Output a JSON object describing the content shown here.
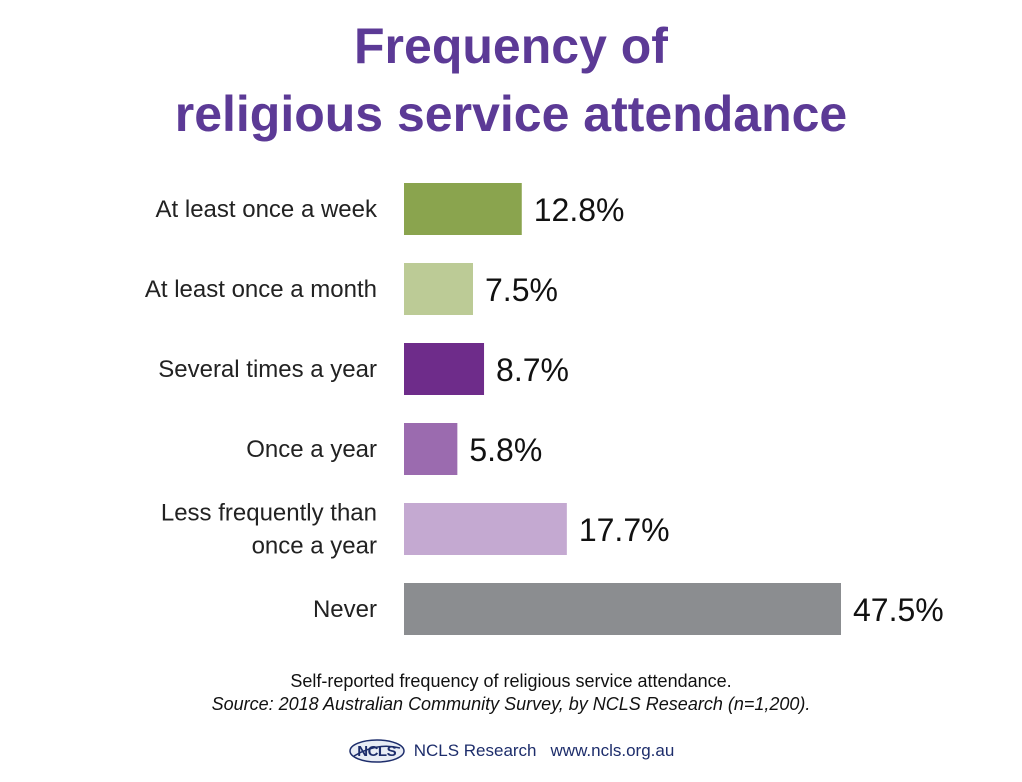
{
  "title_line_1": "Frequency of",
  "title_line_2": "religious service attendance",
  "note": "Self-reported frequency of religious service attendance.",
  "source": "Source: 2018 Australian Community Survey, by NCLS Research (n=1,200).",
  "footer": {
    "logo_text": "NCLS",
    "org": "NCLS Research",
    "url": "www.ncls.org.au"
  },
  "chart_data": {
    "type": "bar",
    "orientation": "horizontal",
    "categories": [
      "At least once a week",
      "At least once a month",
      "Several times a year",
      "Once a year",
      "Less frequently than once a year",
      "Never"
    ],
    "category_lines": [
      [
        "At least once a week"
      ],
      [
        "At least once a month"
      ],
      [
        "Several times a year"
      ],
      [
        "Once a year"
      ],
      [
        "Less frequently than",
        "once a year"
      ],
      [
        "Never"
      ]
    ],
    "values": [
      12.8,
      7.5,
      8.7,
      5.8,
      17.7,
      47.5
    ],
    "value_labels": [
      "12.8%",
      "7.5%",
      "8.7%",
      "5.8%",
      "17.7%",
      "47.5%"
    ],
    "colors": [
      "#8aa44e",
      "#bccb96",
      "#6e2c8a",
      "#9b6baf",
      "#c4a9d1",
      "#8b8d90"
    ],
    "xlim": [
      0,
      50
    ],
    "grid": false,
    "legend": "none"
  }
}
